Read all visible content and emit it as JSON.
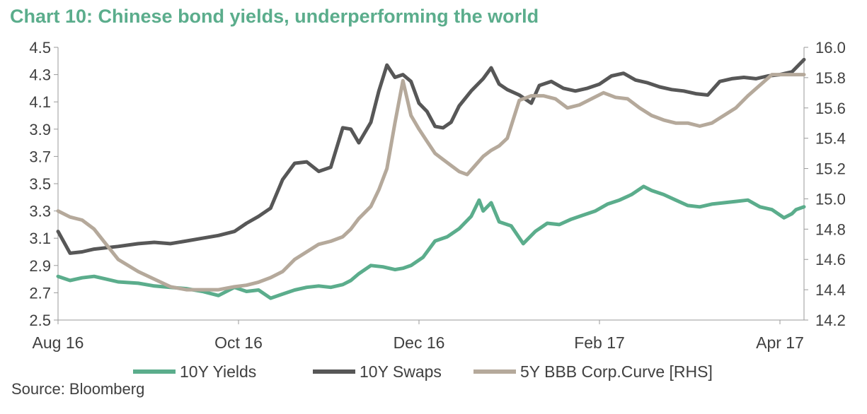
{
  "chart_data": {
    "type": "line",
    "title": "Chart 10: Chinese bond yields, underperforming the world",
    "source": "Source: Bloomberg",
    "x_labels": [
      "Aug 16",
      "Oct 16",
      "Dec 16",
      "Feb 17",
      "Apr 17"
    ],
    "x_label_index": [
      0,
      45,
      90,
      135,
      180
    ],
    "x_range": [
      0,
      186
    ],
    "y_left": {
      "min": 2.5,
      "max": 4.5,
      "ticks": [
        "2.5",
        "2.7",
        "2.9",
        "3.1",
        "3.3",
        "3.5",
        "3.7",
        "3.9",
        "4.1",
        "4.3",
        "4.5"
      ]
    },
    "y_right": {
      "min": 14.2,
      "max": 16.0,
      "ticks": [
        "14.2",
        "14.4",
        "14.6",
        "14.8",
        "15.0",
        "15.2",
        "15.4",
        "15.6",
        "15.8",
        "16.0"
      ]
    },
    "series": [
      {
        "name": "10Y Yields",
        "axis": "left",
        "color": "#5bad8c",
        "points": [
          [
            0,
            2.82
          ],
          [
            3,
            2.79
          ],
          [
            6,
            2.81
          ],
          [
            9,
            2.82
          ],
          [
            12,
            2.8
          ],
          [
            15,
            2.78
          ],
          [
            20,
            2.77
          ],
          [
            24,
            2.75
          ],
          [
            28,
            2.74
          ],
          [
            32,
            2.73
          ],
          [
            36,
            2.71
          ],
          [
            40,
            2.68
          ],
          [
            44,
            2.74
          ],
          [
            47,
            2.71
          ],
          [
            50,
            2.72
          ],
          [
            53,
            2.66
          ],
          [
            56,
            2.69
          ],
          [
            59,
            2.72
          ],
          [
            62,
            2.74
          ],
          [
            65,
            2.75
          ],
          [
            68,
            2.74
          ],
          [
            71,
            2.76
          ],
          [
            73,
            2.79
          ],
          [
            75,
            2.84
          ],
          [
            78,
            2.9
          ],
          [
            81,
            2.89
          ],
          [
            84,
            2.87
          ],
          [
            86,
            2.88
          ],
          [
            88,
            2.9
          ],
          [
            91,
            2.96
          ],
          [
            94,
            3.08
          ],
          [
            97,
            3.11
          ],
          [
            100,
            3.17
          ],
          [
            103,
            3.26
          ],
          [
            105,
            3.38
          ],
          [
            106,
            3.3
          ],
          [
            108,
            3.36
          ],
          [
            110,
            3.22
          ],
          [
            113,
            3.19
          ],
          [
            116,
            3.06
          ],
          [
            119,
            3.15
          ],
          [
            122,
            3.21
          ],
          [
            125,
            3.2
          ],
          [
            128,
            3.24
          ],
          [
            131,
            3.27
          ],
          [
            134,
            3.3
          ],
          [
            137,
            3.35
          ],
          [
            140,
            3.38
          ],
          [
            143,
            3.42
          ],
          [
            146,
            3.48
          ],
          [
            148,
            3.45
          ],
          [
            151,
            3.42
          ],
          [
            154,
            3.38
          ],
          [
            157,
            3.34
          ],
          [
            160,
            3.33
          ],
          [
            163,
            3.35
          ],
          [
            166,
            3.36
          ],
          [
            169,
            3.37
          ],
          [
            172,
            3.38
          ],
          [
            175,
            3.33
          ],
          [
            178,
            3.31
          ],
          [
            181,
            3.25
          ],
          [
            183,
            3.28
          ],
          [
            184,
            3.31
          ],
          [
            186,
            3.33
          ]
        ]
      },
      {
        "name": "10Y Swaps",
        "axis": "left",
        "color": "#575757",
        "points": [
          [
            0,
            3.15
          ],
          [
            3,
            2.99
          ],
          [
            6,
            3.0
          ],
          [
            9,
            3.02
          ],
          [
            12,
            3.03
          ],
          [
            15,
            3.04
          ],
          [
            20,
            3.06
          ],
          [
            24,
            3.07
          ],
          [
            28,
            3.06
          ],
          [
            32,
            3.08
          ],
          [
            36,
            3.1
          ],
          [
            40,
            3.12
          ],
          [
            44,
            3.15
          ],
          [
            47,
            3.21
          ],
          [
            50,
            3.26
          ],
          [
            53,
            3.32
          ],
          [
            56,
            3.53
          ],
          [
            59,
            3.65
          ],
          [
            62,
            3.66
          ],
          [
            65,
            3.59
          ],
          [
            68,
            3.62
          ],
          [
            71,
            3.91
          ],
          [
            73,
            3.9
          ],
          [
            75,
            3.8
          ],
          [
            78,
            3.95
          ],
          [
            80,
            4.18
          ],
          [
            82,
            4.37
          ],
          [
            84,
            4.28
          ],
          [
            86,
            4.3
          ],
          [
            88,
            4.25
          ],
          [
            90,
            4.09
          ],
          [
            92,
            4.03
          ],
          [
            94,
            3.92
          ],
          [
            96,
            3.91
          ],
          [
            98,
            3.95
          ],
          [
            100,
            4.07
          ],
          [
            103,
            4.18
          ],
          [
            106,
            4.27
          ],
          [
            108,
            4.35
          ],
          [
            110,
            4.23
          ],
          [
            112,
            4.19
          ],
          [
            115,
            4.15
          ],
          [
            118,
            4.09
          ],
          [
            120,
            4.22
          ],
          [
            123,
            4.25
          ],
          [
            126,
            4.2
          ],
          [
            129,
            4.18
          ],
          [
            132,
            4.2
          ],
          [
            135,
            4.23
          ],
          [
            138,
            4.29
          ],
          [
            141,
            4.31
          ],
          [
            144,
            4.26
          ],
          [
            147,
            4.24
          ],
          [
            150,
            4.21
          ],
          [
            153,
            4.19
          ],
          [
            156,
            4.18
          ],
          [
            159,
            4.16
          ],
          [
            162,
            4.15
          ],
          [
            165,
            4.25
          ],
          [
            168,
            4.27
          ],
          [
            171,
            4.28
          ],
          [
            174,
            4.27
          ],
          [
            177,
            4.29
          ],
          [
            180,
            4.3
          ],
          [
            183,
            4.32
          ],
          [
            186,
            4.41
          ]
        ]
      },
      {
        "name": "5Y BBB Corp.Curve [RHS]",
        "axis": "right",
        "color": "#b5a99b",
        "points": [
          [
            0,
            14.92
          ],
          [
            3,
            14.88
          ],
          [
            6,
            14.86
          ],
          [
            9,
            14.8
          ],
          [
            12,
            14.7
          ],
          [
            15,
            14.6
          ],
          [
            20,
            14.52
          ],
          [
            24,
            14.47
          ],
          [
            28,
            14.42
          ],
          [
            32,
            14.4
          ],
          [
            36,
            14.4
          ],
          [
            40,
            14.4
          ],
          [
            44,
            14.42
          ],
          [
            47,
            14.43
          ],
          [
            50,
            14.45
          ],
          [
            53,
            14.48
          ],
          [
            56,
            14.52
          ],
          [
            59,
            14.6
          ],
          [
            62,
            14.65
          ],
          [
            65,
            14.7
          ],
          [
            68,
            14.72
          ],
          [
            71,
            14.75
          ],
          [
            73,
            14.8
          ],
          [
            75,
            14.87
          ],
          [
            78,
            14.95
          ],
          [
            80,
            15.06
          ],
          [
            82,
            15.2
          ],
          [
            84,
            15.5
          ],
          [
            86,
            15.78
          ],
          [
            88,
            15.55
          ],
          [
            90,
            15.46
          ],
          [
            92,
            15.38
          ],
          [
            94,
            15.3
          ],
          [
            96,
            15.26
          ],
          [
            98,
            15.22
          ],
          [
            100,
            15.18
          ],
          [
            102,
            15.16
          ],
          [
            104,
            15.22
          ],
          [
            106,
            15.28
          ],
          [
            108,
            15.32
          ],
          [
            110,
            15.35
          ],
          [
            112,
            15.4
          ],
          [
            115,
            15.65
          ],
          [
            118,
            15.68
          ],
          [
            121,
            15.68
          ],
          [
            124,
            15.66
          ],
          [
            127,
            15.6
          ],
          [
            130,
            15.62
          ],
          [
            133,
            15.66
          ],
          [
            136,
            15.7
          ],
          [
            139,
            15.67
          ],
          [
            142,
            15.66
          ],
          [
            145,
            15.6
          ],
          [
            148,
            15.55
          ],
          [
            151,
            15.52
          ],
          [
            154,
            15.5
          ],
          [
            157,
            15.5
          ],
          [
            160,
            15.48
          ],
          [
            163,
            15.5
          ],
          [
            166,
            15.55
          ],
          [
            169,
            15.6
          ],
          [
            172,
            15.68
          ],
          [
            175,
            15.75
          ],
          [
            178,
            15.82
          ],
          [
            181,
            15.82
          ],
          [
            186,
            15.82
          ]
        ]
      }
    ]
  }
}
